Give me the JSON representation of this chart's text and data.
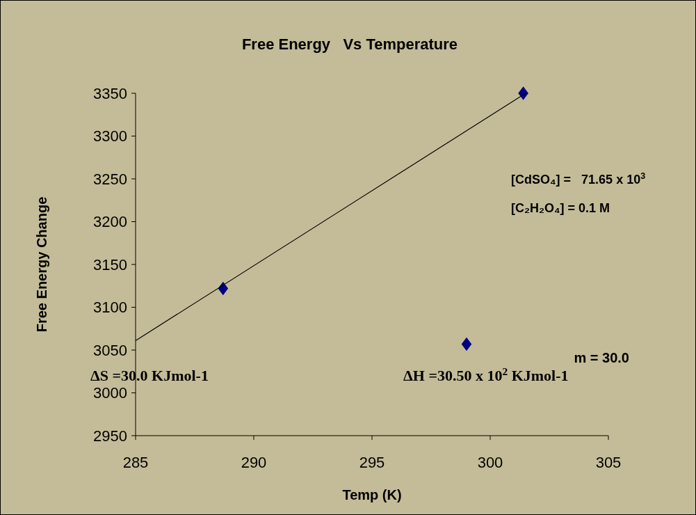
{
  "chart_data": {
    "type": "scatter",
    "title": "Free Energy   Vs Temperature",
    "xlabel": "Temp (K)",
    "ylabel": "Free Energy Change",
    "xlim": [
      285,
      305
    ],
    "xticks": [
      285,
      290,
      295,
      300,
      305
    ],
    "ylim": [
      2950,
      3350
    ],
    "yticks": [
      2950,
      3000,
      3050,
      3100,
      3150,
      3200,
      3250,
      3300,
      3350
    ],
    "grid": false,
    "marker": "diamond",
    "series": [
      {
        "color": "#000080",
        "x": [
          288.7,
          299,
          301.4
        ],
        "values": [
          3122,
          3057,
          3350
        ]
      },
      {
        "type": "line",
        "color": "#000000",
        "marker": "none",
        "x": [
          285,
          301.5
        ],
        "values": [
          3061,
          3350
        ]
      }
    ],
    "annotations": [
      "[CdSO₄] =   71.65 x 10$^{3}$",
      "[C₂H₂O₄] = 0.1 M",
      "m = 30.0",
      "ΔS =30.0 KJmol-1",
      "ΔH =30.50 x 10$^{2}$ KJmol-1"
    ]
  }
}
